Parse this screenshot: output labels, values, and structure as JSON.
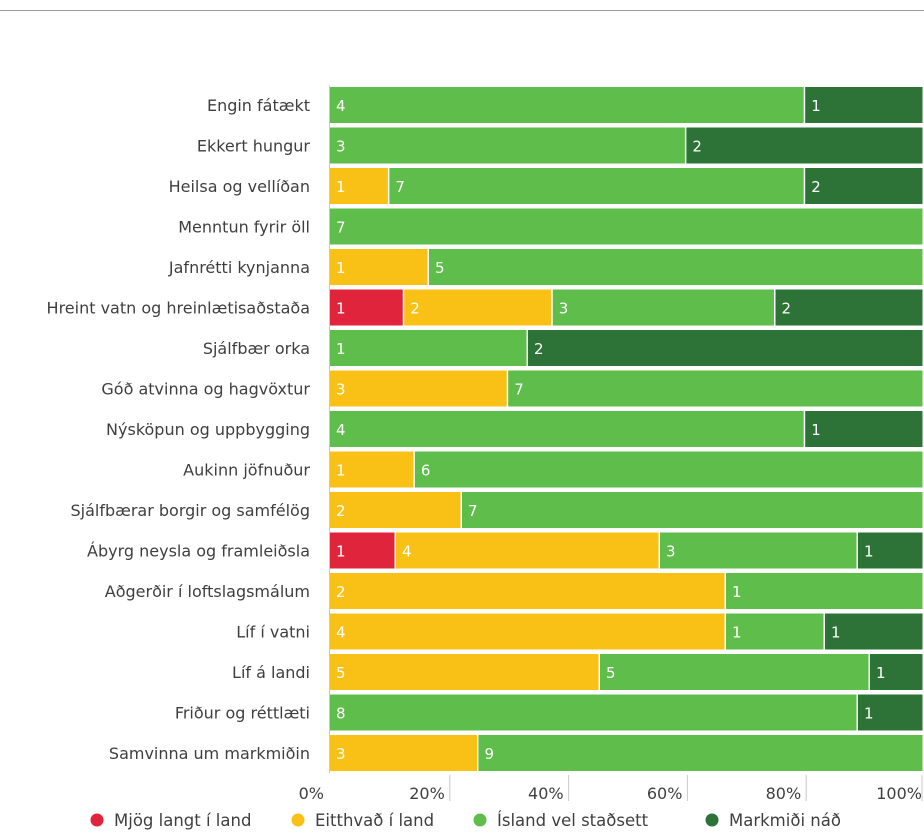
{
  "chart_data": {
    "type": "bar",
    "orientation": "horizontal",
    "stacked": "percent",
    "categories": [
      "Engin fátækt",
      "Ekkert hungur",
      "Heilsa og vellíðan",
      "Menntun fyrir öll",
      "Jafnrétti kynjanna",
      "Hreint vatn og hreinlætisaðstaða",
      "Sjálfbær orka",
      "Góð atvinna og hagvöxtur",
      "Nýsköpun og uppbygging",
      "Aukinn jöfnuður",
      "Sjálfbærar borgir og samfélög",
      "Ábyrg neysla og framleiðsla",
      "Aðgerðir í loftslagsmálum",
      "Líf í vatni",
      "Líf á landi",
      "Friður og réttlæti",
      "Samvinna um markmiðin"
    ],
    "series": [
      {
        "name": "Mjög langt í land",
        "color": "#e0243b",
        "values": [
          0,
          0,
          0,
          0,
          0,
          1,
          0,
          0,
          0,
          0,
          0,
          1,
          0,
          0,
          0,
          0,
          0
        ]
      },
      {
        "name": "Eitthvað í land",
        "color": "#f9c015",
        "values": [
          0,
          0,
          1,
          0,
          1,
          2,
          0,
          3,
          0,
          1,
          2,
          4,
          2,
          4,
          5,
          0,
          3
        ]
      },
      {
        "name": "Ísland vel staðsett",
        "color": "#5fbe4b",
        "values": [
          4,
          3,
          7,
          7,
          5,
          3,
          1,
          7,
          4,
          6,
          7,
          3,
          1,
          1,
          5,
          8,
          9
        ]
      },
      {
        "name": "Markmiði náð",
        "color": "#2d7237",
        "values": [
          1,
          2,
          2,
          0,
          0,
          2,
          2,
          0,
          1,
          0,
          0,
          1,
          0,
          1,
          1,
          1,
          0
        ]
      }
    ],
    "x_ticks": [
      "0%",
      "20%",
      "40%",
      "60%",
      "80%",
      "100%"
    ],
    "xlim": [
      0,
      100
    ],
    "legend_position": "bottom"
  }
}
